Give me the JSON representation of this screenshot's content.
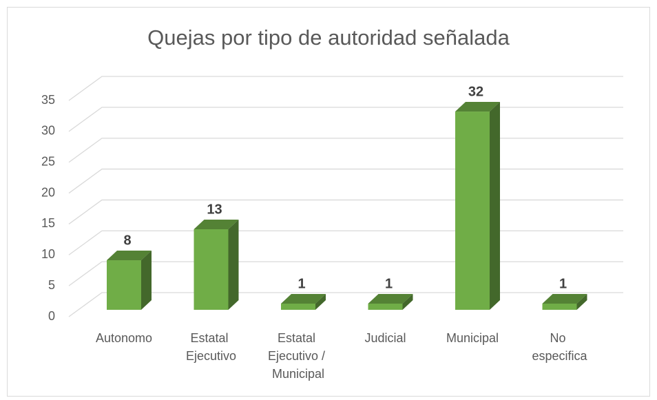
{
  "chart_data": {
    "type": "bar3d",
    "title": "Quejas por tipo de autoridad señalada",
    "categories": [
      "Autonomo",
      "Estatal Ejecutivo",
      "Estatal Ejecutivo / Municipal",
      "Judicial",
      "Municipal",
      "No especifica"
    ],
    "values": [
      8,
      13,
      1,
      1,
      32,
      1
    ],
    "color": "#70ad47",
    "ylim": [
      0,
      35
    ],
    "yticks": [
      0,
      5,
      10,
      15,
      20,
      25,
      30,
      35
    ],
    "grid": true
  }
}
